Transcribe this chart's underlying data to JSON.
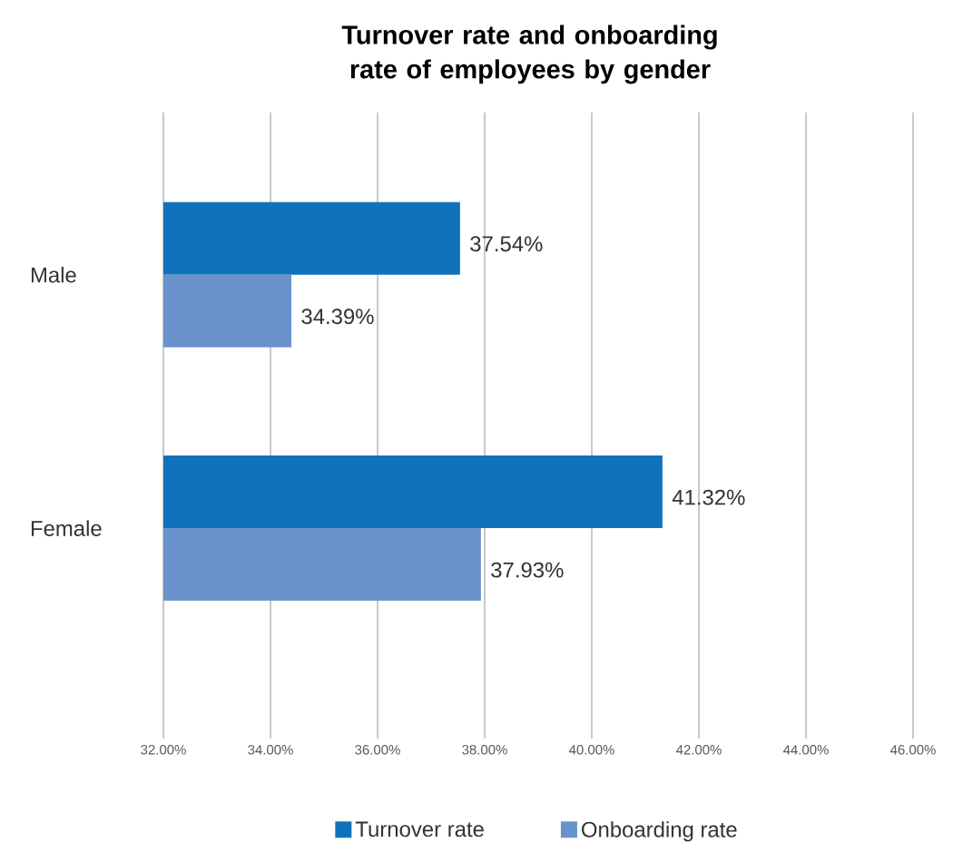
{
  "chart_data": {
    "type": "bar",
    "orientation": "horizontal",
    "title": "Turnover rate and onboarding rate of employees by gender",
    "categories": [
      "Male",
      "Female"
    ],
    "series": [
      {
        "name": "Turnover rate",
        "color": "#1172bc",
        "values": [
          37.54,
          41.32
        ],
        "value_labels": [
          "37.54%",
          "41.32%"
        ]
      },
      {
        "name": "Onboarding rate",
        "color": "#6a92cc",
        "values": [
          34.39,
          37.93
        ],
        "value_labels": [
          "34.39%",
          "37.93%"
        ]
      }
    ],
    "xlim": [
      32,
      46
    ],
    "xticks": [
      {
        "value": 32,
        "label": "32.00%"
      },
      {
        "value": 34,
        "label": "34.00%"
      },
      {
        "value": 36,
        "label": "36.00%"
      },
      {
        "value": 38,
        "label": "38.00%"
      },
      {
        "value": 40,
        "label": "40.00%"
      },
      {
        "value": 42,
        "label": "42.00%"
      },
      {
        "value": 44,
        "label": "44.00%"
      },
      {
        "value": 46,
        "label": "46.00%"
      }
    ],
    "grid": "x",
    "legend": "bottom"
  }
}
